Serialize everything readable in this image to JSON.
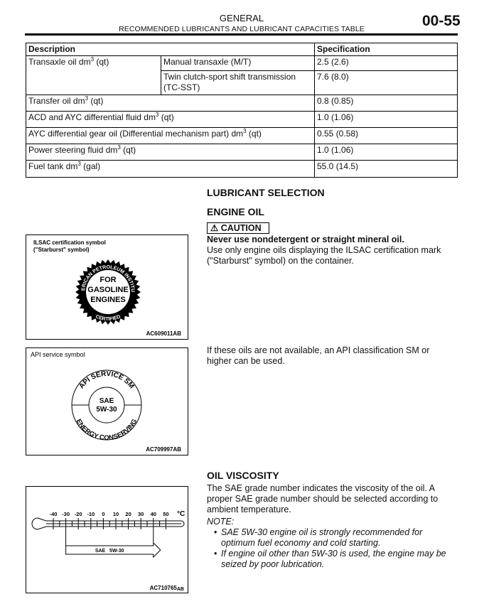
{
  "header": {
    "section": "GENERAL",
    "subtitle": "RECOMMENDED LUBRICANTS AND LUBRICANT CAPACITIES TABLE",
    "page_number": "00-55"
  },
  "table": {
    "headers": [
      "Description",
      "Specification"
    ],
    "rows": [
      {
        "desc": "Transaxle oil dm",
        "sub": "Manual transaxle (M/T)",
        "spec": "2.5 (2.6)"
      },
      {
        "sub": "Twin clutch-sport shift transmission (TC-SST)",
        "spec": "7.6 (8.0)"
      },
      {
        "desc": "Transfer oil dm",
        "spec": "0.8 (0.85)"
      },
      {
        "desc": "ACD and AYC differential fluid dm",
        "spec": "1.0 (1.06)"
      },
      {
        "desc": "AYC differential gear oil (Differential mechanism part) dm",
        "spec": "0.55 (0.58)"
      },
      {
        "desc": "Power steering fluid dm",
        "spec": "1.0 (1.06)"
      },
      {
        "desc": "Fuel tank dm",
        "spec": "55.0 (14.5)"
      }
    ],
    "sup": "3",
    "unit_qt": " (qt)",
    "unit_gal": " (gal)"
  },
  "lubricant_selection": {
    "heading": "LUBRICANT SELECTION",
    "engine_oil_heading": "ENGINE OIL",
    "caution_label": "CAUTION",
    "caution_text": "Never use nondetergent or straight mineral oil.",
    "ilsac_text": "Use only engine oils displaying the ILSAC certification mark (\"Starburst\" symbol) on the container.",
    "api_text": "If these oils are not available, an API classification SM or higher can be used."
  },
  "figures": {
    "ilsac": {
      "caption": "ILSAC certification symbol",
      "caption2": "(\"Starburst\" symbol)",
      "ring_top": "AMERICAN PETROLEUM INSTITUTE",
      "ring_bottom": "CERTIFIED",
      "center1": "FOR",
      "center2": "GASOLINE",
      "center3": "ENGINES",
      "code": "AC609011AB"
    },
    "api": {
      "caption": "API service symbol",
      "ring_top": "API SERVICE SM",
      "ring_bottom": "ENERGY CONSERVING",
      "center1": "SAE",
      "center2": "5W-30",
      "code": "AC709997AB"
    },
    "thermo": {
      "ticks": [
        "-40",
        "-30",
        "-20",
        "-10",
        "0",
        "10",
        "20",
        "30",
        "40",
        "50"
      ],
      "unit": "°C",
      "range_label": "SAE   5W-30",
      "code": "AC710765",
      "code_suffix": "AB"
    }
  },
  "oil_viscosity": {
    "heading": "OIL VISCOSITY",
    "text": "The SAE grade number indicates the viscosity of the oil. A proper SAE grade number should be selected according to ambient temperature.",
    "note_label": "NOTE:",
    "notes": [
      "SAE 5W-30 engine oil is strongly recommended for optimum fuel economy and cold starting.",
      "If engine oil other than 5W-30 is used, the engine may be seized by poor lubrication."
    ]
  }
}
